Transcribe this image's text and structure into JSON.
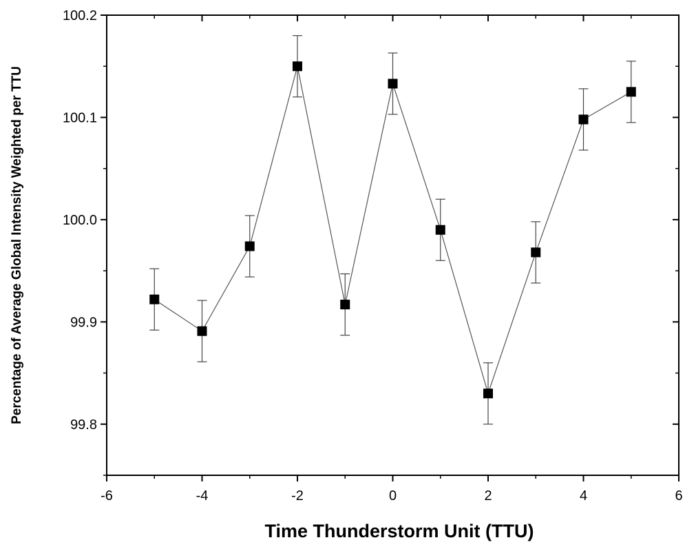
{
  "chart_data": {
    "type": "line",
    "title": "",
    "xlabel": "Time Thunderstorm Unit (TTU)",
    "ylabel": "Percentage of Average Global Intensity Weighted per TTU",
    "xlim": [
      -6,
      6
    ],
    "ylim": [
      99.75,
      100.2
    ],
    "xticks": [
      -6,
      -4,
      -2,
      0,
      2,
      4,
      6
    ],
    "xtick_labels": [
      "-6",
      "-4",
      "-2",
      "0",
      "2",
      "4",
      "6"
    ],
    "yticks": [
      99.8,
      99.9,
      100.0,
      100.1,
      100.2
    ],
    "ytick_labels": [
      "99.8",
      "99.9",
      "100.0",
      "100.1",
      "100.2"
    ],
    "grid": false,
    "marker": "square",
    "series": [
      {
        "x": [
          -5,
          -4,
          -3,
          -2,
          -1,
          0,
          1,
          2,
          3,
          4,
          5
        ],
        "y": [
          99.922,
          99.891,
          99.974,
          100.15,
          99.917,
          100.133,
          99.99,
          99.83,
          99.968,
          100.098,
          100.125
        ],
        "error": [
          0.03,
          0.03,
          0.03,
          0.03,
          0.03,
          0.03,
          0.03,
          0.03,
          0.03,
          0.03,
          0.03
        ]
      }
    ]
  }
}
